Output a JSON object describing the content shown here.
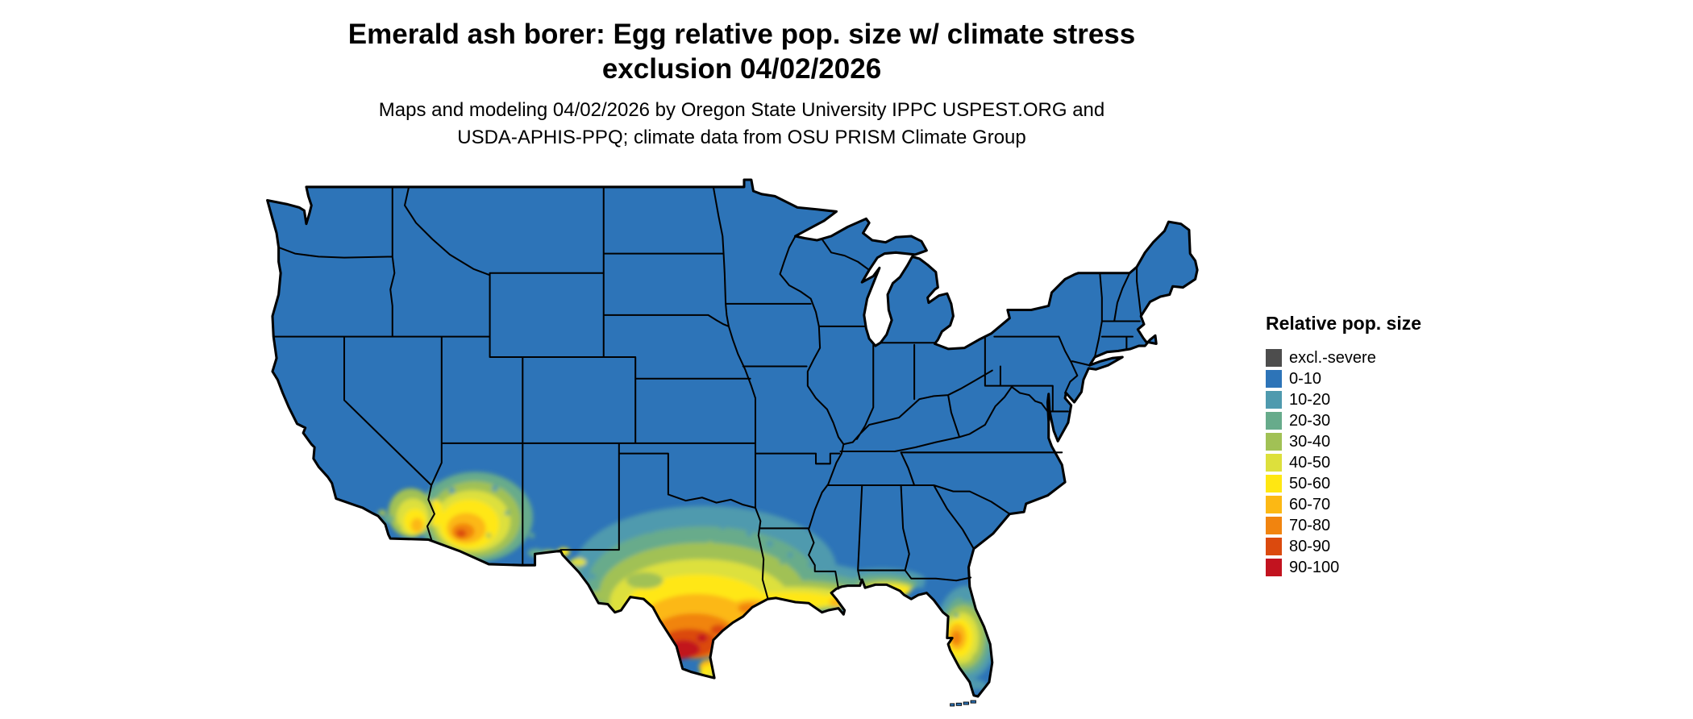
{
  "title": {
    "line1": "Emerald ash borer: Egg relative pop. size w/ climate stress",
    "line2": "exclusion 04/02/2026"
  },
  "subtitle": {
    "line1": "Maps and modeling 04/02/2026 by Oregon State University IPPC USPEST.ORG and",
    "line2": "USDA-APHIS-PPQ; climate data from OSU PRISM Climate Group"
  },
  "legend": {
    "title": "Relative pop. size",
    "items": [
      {
        "label": "excl.-severe",
        "color": "#4d4d4d"
      },
      {
        "label": "0-10",
        "color": "#2d74b8"
      },
      {
        "label": "10-20",
        "color": "#4f9aae"
      },
      {
        "label": "20-30",
        "color": "#67ab8b"
      },
      {
        "label": "30-40",
        "color": "#a1c155"
      },
      {
        "label": "40-50",
        "color": "#dde03c"
      },
      {
        "label": "50-60",
        "color": "#ffe712"
      },
      {
        "label": "60-70",
        "color": "#fcb814"
      },
      {
        "label": "70-80",
        "color": "#f1840f"
      },
      {
        "label": "80-90",
        "color": "#db4a0e"
      },
      {
        "label": "90-100",
        "color": "#c2131f"
      }
    ]
  },
  "map": {
    "region": "Continental United States",
    "type": "raster risk map",
    "dominant_class": "0-10",
    "high_value_areas": [
      "southern Texas",
      "Texas-Louisiana Gulf Coast",
      "central Florida",
      "southern Arizona",
      "southeastern California",
      "Florida panhandle coast"
    ]
  }
}
